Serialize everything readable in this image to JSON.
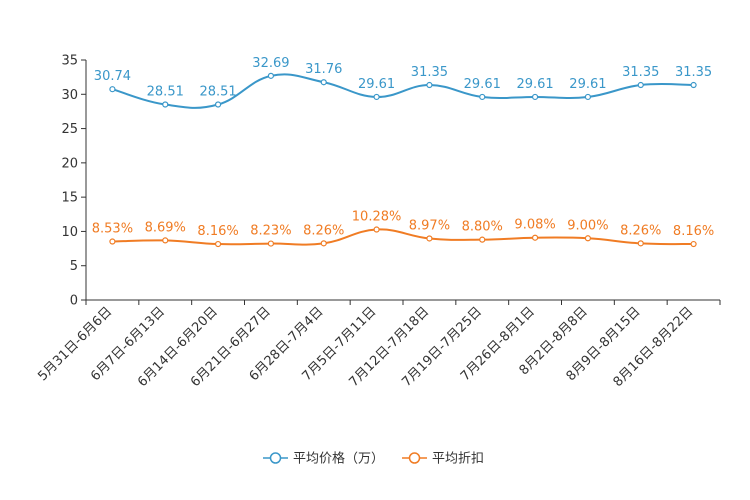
{
  "chart_data": {
    "type": "line",
    "title": "",
    "xlabel": "",
    "ylabel": "",
    "ylim": [
      0,
      35
    ],
    "yticks": [
      0,
      5,
      10,
      15,
      20,
      25,
      30,
      35
    ],
    "categories": [
      "5月31日-6月6日",
      "6月7日-6月13日",
      "6月14日-6月20日",
      "6月21日-6月27日",
      "6月28日-7月4日",
      "7月5日-7月11日",
      "7月12日-7月18日",
      "7月19日-7月25日",
      "7月26日-8月1日",
      "8月2日-8月8日",
      "8月9日-8月15日",
      "8月16日-8月22日"
    ],
    "series": [
      {
        "name": "平均价格（万）",
        "color": "#3a97c9",
        "values": [
          30.74,
          28.51,
          28.51,
          32.69,
          31.76,
          29.61,
          31.35,
          29.61,
          29.61,
          29.61,
          31.35,
          31.35
        ],
        "labels": [
          "30.74",
          "28.51",
          "28.51",
          "32.69",
          "31.76",
          "29.61",
          "31.35",
          "29.61",
          "29.61",
          "29.61",
          "31.35",
          "31.35"
        ]
      },
      {
        "name": "平均折扣",
        "color": "#f07c24",
        "values": [
          8.53,
          8.69,
          8.16,
          8.23,
          8.26,
          10.28,
          8.97,
          8.8,
          9.08,
          9.0,
          8.26,
          8.16
        ],
        "labels": [
          "8.53%",
          "8.69%",
          "8.16%",
          "8.23%",
          "8.26%",
          "10.28%",
          "8.97%",
          "8.80%",
          "9.08%",
          "9.00%",
          "8.26%",
          "8.16%"
        ]
      }
    ],
    "legend_position": "bottom-center"
  }
}
